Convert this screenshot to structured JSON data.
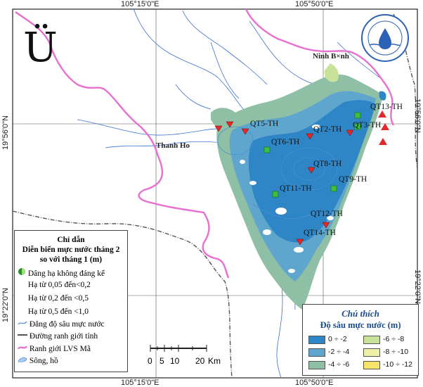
{
  "coords": {
    "top": [
      "105°15'0\"E",
      "105°50'0\"E"
    ],
    "bottom": [
      "105°15'0\"E",
      "105°50'0\"E"
    ],
    "left": [
      "19°56'0\"N",
      "19°22'0\"N"
    ],
    "right": [
      "19°56'0\"N",
      "19°22'0\"N"
    ]
  },
  "north_symbol": "Ü",
  "places": {
    "ninh_binh": "Ninh B×nh",
    "thanh_hoa": "Thanh Ho"
  },
  "stations": {
    "qt5": "QT5-TH",
    "qt6": "QT6-TH",
    "qt8": "QT8-TH",
    "qt9": "QT9-TH",
    "qt11": "QT11-TH",
    "qt12a": "QT2-TH",
    "qt12b": "QT12-TH",
    "qt13": "QT13-TH",
    "qt3": "QT3-TH",
    "qt14": "QT14-TH"
  },
  "legend_left": {
    "title": [
      "Chỉ dẫn",
      "Diễn biến mực nước tháng 2",
      "so với tháng 1 (m)"
    ],
    "items": [
      "Dâng hạ không đáng kể",
      "Hạ từ 0,05 đến<0,2",
      "Hạ từ 0,2 đến <0,5",
      "Hạ từ 0,5 đến <1,0",
      "Đẳng độ sâu mực nước",
      "Đường ranh giới tỉnh",
      "Ranh giới LVS Mã",
      "Sông, hồ"
    ]
  },
  "legend_right": {
    "title": "Chú thích",
    "subtitle": "Độ sâu mực nước (m)",
    "classes": [
      {
        "label": "0 ÷ -2",
        "color": "#2f86c6"
      },
      {
        "label": "-6 ÷ -8",
        "color": "#c9e29a"
      },
      {
        "label": "-2 ÷ -4",
        "color": "#5fa6cf"
      },
      {
        "label": "-8 ÷ -10",
        "color": "#eef0a6"
      },
      {
        "label": "-4 ÷ -6",
        "color": "#8fbfa4"
      },
      {
        "label": "-10 ÷ -12",
        "color": "#f7e46a"
      }
    ]
  },
  "scale": {
    "labels": [
      "0",
      "5",
      "10",
      "20"
    ],
    "unit": "Km"
  },
  "colors": {
    "boundary": "#e86fd0",
    "province": "#555555",
    "river": "#3b6fd1",
    "isoline": "#4a8fd6"
  }
}
